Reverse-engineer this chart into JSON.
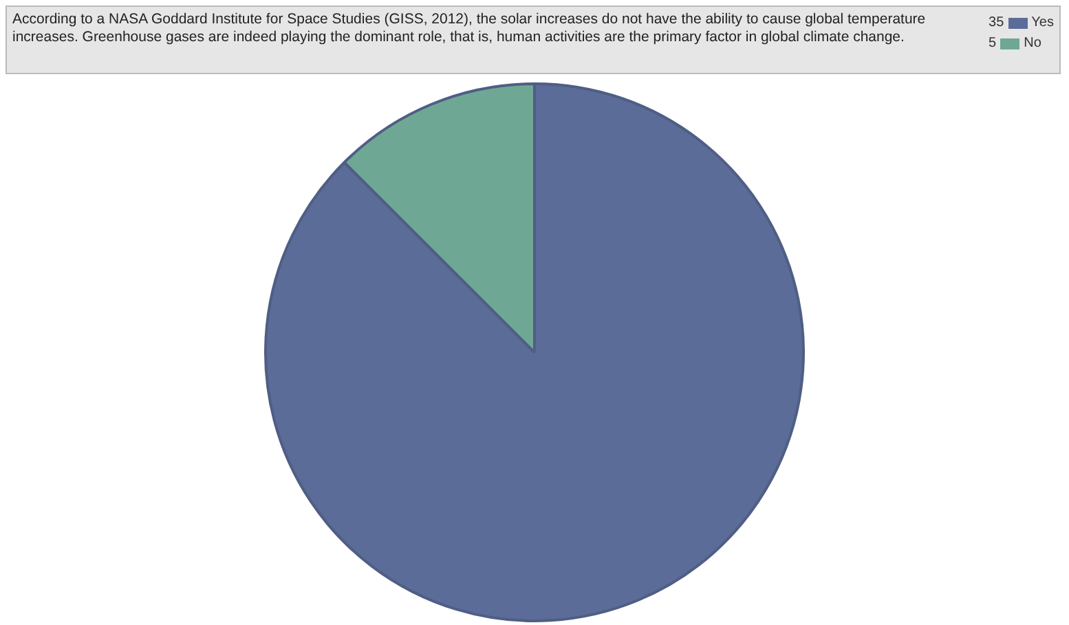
{
  "chart_data": {
    "type": "pie",
    "title": "According to a NASA Goddard Institute for Space Studies (GISS, 2012), the solar increases do not have the ability to cause global temperature increases. Greenhouse gases are indeed playing the dominant role, that is, human activities are the primary factor in global climate change.",
    "categories": [
      "Yes",
      "No"
    ],
    "values": [
      35,
      5
    ],
    "value_labels": [
      "35",
      "5"
    ],
    "colors": [
      "#5b6c98",
      "#6fa795"
    ],
    "legend": "top right"
  }
}
